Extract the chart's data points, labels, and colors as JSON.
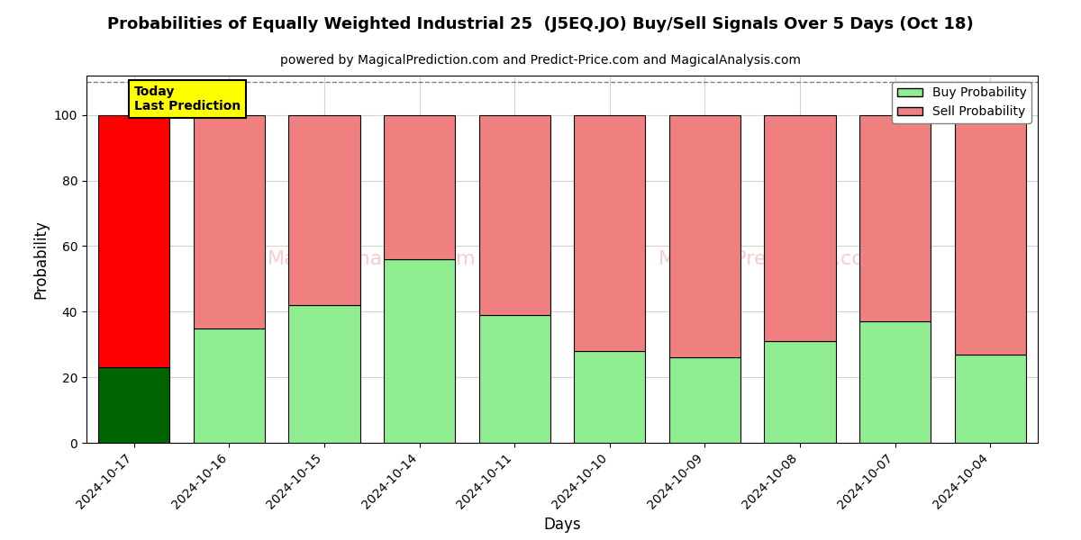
{
  "title": "Probabilities of Equally Weighted Industrial 25  (J5EQ.JO) Buy/Sell Signals Over 5 Days (Oct 18)",
  "subtitle": "powered by MagicalPrediction.com and Predict-Price.com and MagicalAnalysis.com",
  "xlabel": "Days",
  "ylabel": "Probability",
  "categories": [
    "2024-10-17",
    "2024-10-16",
    "2024-10-15",
    "2024-10-14",
    "2024-10-11",
    "2024-10-10",
    "2024-10-09",
    "2024-10-08",
    "2024-10-07",
    "2024-10-04"
  ],
  "buy_values": [
    23,
    35,
    42,
    56,
    39,
    28,
    26,
    31,
    37,
    27
  ],
  "sell_values": [
    77,
    65,
    58,
    44,
    61,
    72,
    74,
    69,
    63,
    73
  ],
  "today_bar_buy_color": "#006400",
  "today_bar_sell_color": "#FF0000",
  "other_bar_buy_color": "#90EE90",
  "other_bar_sell_color": "#F08080",
  "bar_edge_color": "#000000",
  "today_label_bg": "#FFFF00",
  "ylim": [
    0,
    112
  ],
  "yticks": [
    0,
    20,
    40,
    60,
    80,
    100
  ],
  "dashed_line_y": 110,
  "figsize": [
    12,
    6
  ],
  "dpi": 100
}
